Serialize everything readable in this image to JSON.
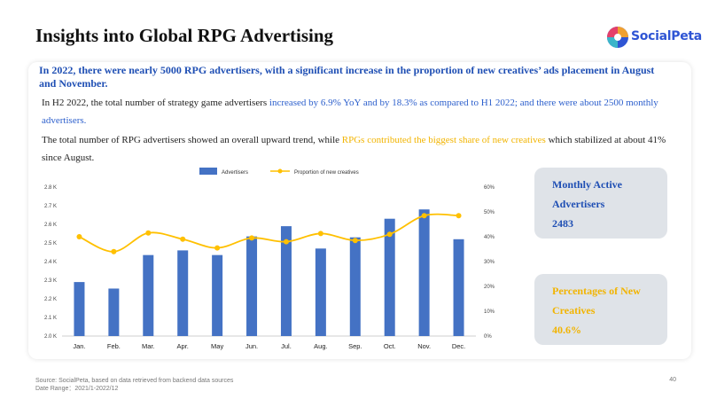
{
  "page": {
    "title": "Insights into Global RPG Advertising",
    "logo_text": "SocialPeta",
    "page_number": "40"
  },
  "summary": {
    "headline": "In 2022, there were nearly 5000 RPG advertisers, with a significant increase in the proportion of new creatives’ ads placement in August and November.",
    "p1_a": "In H2 2022, the total number of strategy game advertisers ",
    "p1_b": "increased by 6.9% YoY and by 18.3% as compared to H1 2022; and there were about 2500 monthly advertisers.",
    "p2_a": "The total number of RPG advertisers showed an overall upward trend, while ",
    "p2_b": "RPGs contributed the biggest share of new creatives",
    "p2_c": " which stabilized at about 41% since August."
  },
  "kpis": {
    "monthly_label": "Monthly Active Advertisers",
    "monthly_value": "2483",
    "creatives_label": "Percentages of New Creatives",
    "creatives_value": "40.6%"
  },
  "footer": {
    "source": "Source: SocialPeta, based on data retrieved from backend data sources",
    "date_range": "Date Range：2021/1-2022/12"
  },
  "colors": {
    "bar": "#4472c4",
    "line": "#ffc000",
    "accent_blue": "#1f4fb4",
    "accent_yellow": "#f2b400"
  },
  "chart_data": {
    "type": "bar",
    "categories": [
      "Jan.",
      "Feb.",
      "Mar.",
      "Apr.",
      "May",
      "Jun.",
      "Jul.",
      "Aug.",
      "Sep.",
      "Oct.",
      "Nov.",
      "Dec."
    ],
    "series": [
      {
        "name": "Advertisers",
        "type": "bar",
        "axis": "left",
        "values": [
          2290,
          2255,
          2435,
          2460,
          2435,
          2535,
          2590,
          2470,
          2530,
          2630,
          2680,
          2520
        ]
      },
      {
        "name": "Proportion of new creatives",
        "type": "line",
        "axis": "right",
        "values": [
          40,
          34,
          41.5,
          39,
          35.5,
          39.5,
          38,
          41.3,
          38.5,
          41,
          48.5,
          48.5
        ]
      }
    ],
    "y_left": {
      "ticks": [
        "2.0 K",
        "2.1 K",
        "2.2 K",
        "2.3 K",
        "2.4 K",
        "2.5 K",
        "2.6 K",
        "2.7 K",
        "2.8 K"
      ],
      "ylim": [
        2000,
        2800
      ]
    },
    "y_right": {
      "ticks": [
        "0%",
        "10%",
        "20%",
        "30%",
        "40%",
        "50%",
        "60%"
      ],
      "ylim": [
        0,
        60
      ]
    },
    "legend": "top",
    "grid": false
  }
}
